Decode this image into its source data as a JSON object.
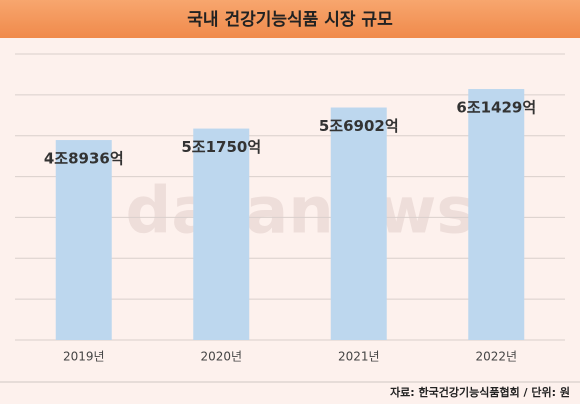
{
  "chart_data": {
    "type": "bar",
    "title": "국내 건강기능식품 시장 규모",
    "categories": [
      "2019년",
      "2020년",
      "2021년",
      "2022년"
    ],
    "values": [
      48936,
      51750,
      56902,
      61429
    ],
    "value_labels": [
      "4조8936억",
      "5조1750억",
      "5조6902억",
      "6조1429억"
    ],
    "color": "#bdd7ee",
    "ylim": [
      0,
      70000
    ],
    "yticks": [
      0,
      10000,
      20000,
      30000,
      40000,
      50000,
      60000,
      70000
    ],
    "grid": true,
    "watermark": "datanews",
    "source": "자료: 한국건강기능식품협회 / 단위: 원"
  }
}
